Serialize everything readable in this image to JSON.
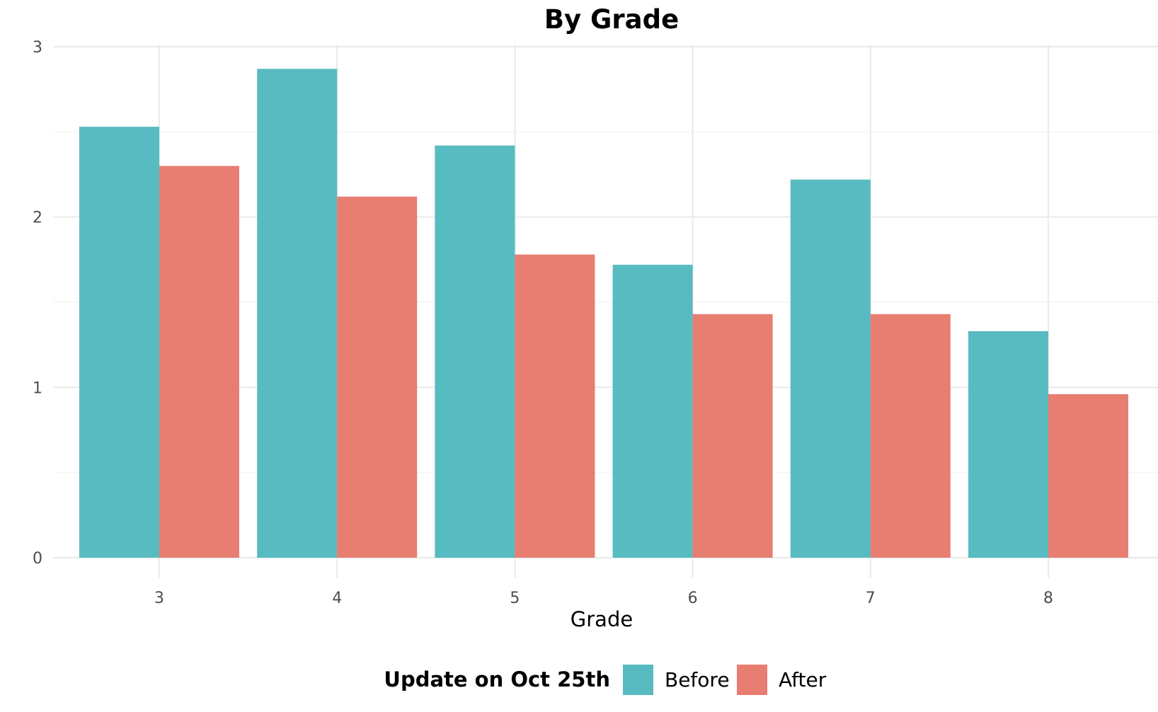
{
  "chart_data": {
    "type": "bar",
    "title": "By Grade",
    "xlabel": "Grade",
    "ylabel": "",
    "categories": [
      "3",
      "4",
      "5",
      "6",
      "7",
      "8"
    ],
    "series": [
      {
        "name": "Before",
        "color": "#58BBC1",
        "values": [
          2.53,
          2.87,
          2.42,
          1.72,
          2.22,
          1.33
        ]
      },
      {
        "name": "After",
        "color": "#E87D72",
        "values": [
          2.3,
          2.12,
          1.78,
          1.43,
          1.43,
          0.96
        ]
      }
    ],
    "ylim": [
      0,
      3
    ],
    "yticks": [
      "0",
      "1",
      "2",
      "3"
    ],
    "grid": true,
    "legend": {
      "title": "Update on Oct 25th",
      "position": "bottom"
    }
  }
}
